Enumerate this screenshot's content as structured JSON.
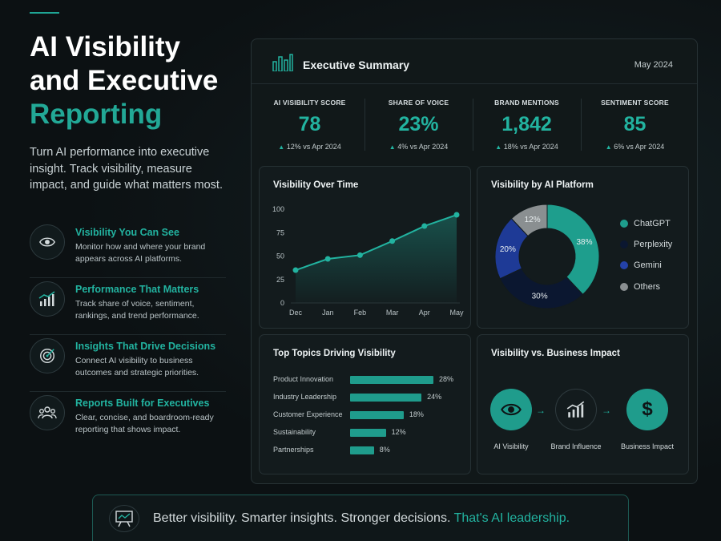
{
  "hero": {
    "title_line1": "AI Visibility",
    "title_line2": "and Executive",
    "title_line3": "Reporting",
    "description": "Turn AI performance into executive insight. Track visibility, measure impact, and guide what matters most."
  },
  "features": [
    {
      "icon": "eye-icon",
      "title": "Visibility You Can See",
      "description": "Monitor how and where your brand appears across AI platforms."
    },
    {
      "icon": "trend-chart-icon",
      "title": "Performance That Matters",
      "description": "Track share of voice, sentiment, rankings, and trend performance."
    },
    {
      "icon": "target-icon",
      "title": "Insights That Drive Decisions",
      "description": "Connect AI visibility to business outcomes and strategic priorities."
    },
    {
      "icon": "people-icon",
      "title": "Reports Built for Executives",
      "description": "Clear, concise, and boardroom-ready reporting that shows impact."
    }
  ],
  "panel": {
    "title": "Executive Summary",
    "date": "May 2024",
    "kpis": [
      {
        "label": "AI VISIBILITY SCORE",
        "value": "78",
        "change": "12% vs Apr 2024"
      },
      {
        "label": "SHARE OF VOICE",
        "value": "23%",
        "change": "4% vs Apr 2024"
      },
      {
        "label": "BRAND MENTIONS",
        "value": "1,842",
        "change": "18% vs Apr 2024"
      },
      {
        "label": "SENTIMENT SCORE",
        "value": "85",
        "change": "6% vs Apr 2024"
      }
    ]
  },
  "chart_data": [
    {
      "type": "area",
      "title": "Visibility Over Time",
      "categories": [
        "Dec",
        "Jan",
        "Feb",
        "Mar",
        "Apr",
        "May"
      ],
      "values": [
        35,
        47,
        51,
        66,
        82,
        94
      ],
      "yticks": [
        "0",
        "25",
        "50",
        "75",
        "100"
      ],
      "ylim": [
        0,
        100
      ],
      "color": "#22b3a0"
    },
    {
      "type": "pie",
      "title": "Visibility by AI Platform",
      "slices": [
        {
          "name": "ChatGPT",
          "value": 38,
          "label": "38%",
          "color": "#1e9e8d"
        },
        {
          "name": "Perplexity",
          "value": 30,
          "label": "30%",
          "color": "#0b1730"
        },
        {
          "name": "Gemini",
          "value": 20,
          "label": "20%",
          "color": "#1e3a96"
        },
        {
          "name": "Others",
          "value": 12,
          "label": "12%",
          "color": "#8a8f91"
        }
      ]
    },
    {
      "type": "bar",
      "title": "Top Topics Driving Visibility",
      "categories": [
        "Product Innovation",
        "Industry Leadership",
        "Customer Experience",
        "Sustainability",
        "Partnerships"
      ],
      "values": [
        28,
        24,
        18,
        12,
        8
      ],
      "labels": [
        "28%",
        "24%",
        "18%",
        "12%",
        "8%"
      ],
      "xlim": [
        0,
        28
      ]
    }
  ],
  "impact": {
    "title": "Visibility vs. Business Impact",
    "nodes": [
      {
        "icon": "eye-icon",
        "label": "AI Visibility"
      },
      {
        "icon": "trend-chart-icon",
        "label": "Brand Influence"
      },
      {
        "icon": "dollar-icon",
        "label": "Business Impact"
      }
    ]
  },
  "footer": {
    "text": "Better visibility. Smarter insights. Stronger decisions.",
    "highlight": "That's AI leadership."
  },
  "colors": {
    "accent": "#22b3a0",
    "background": "#0c1113"
  }
}
